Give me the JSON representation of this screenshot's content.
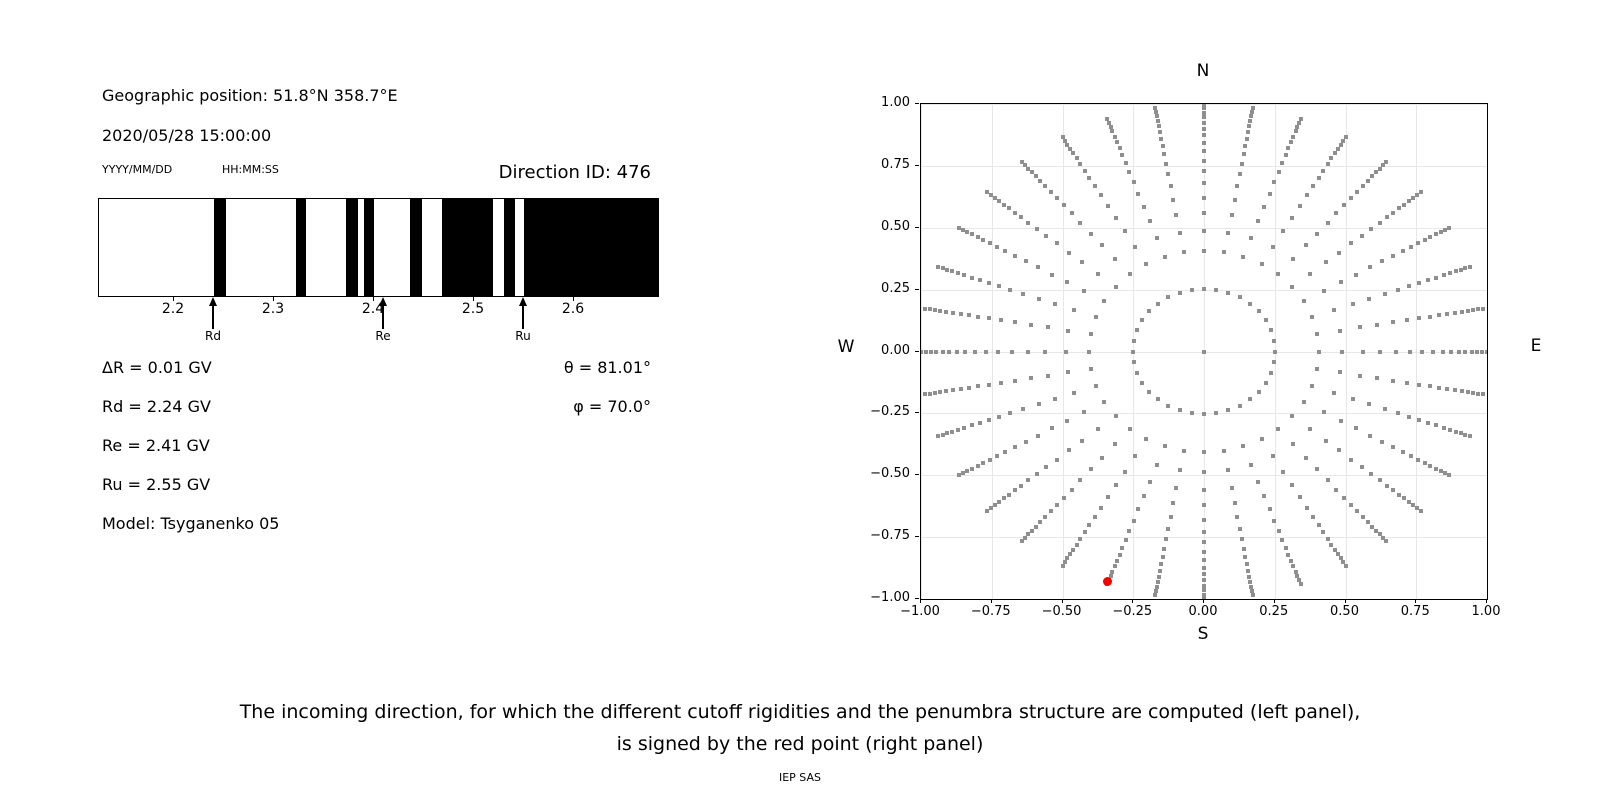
{
  "left_panel": {
    "geo_position": "Geographic position: 51.8°N 358.7°E",
    "datetime": "2020/05/28 15:00:00",
    "date_format_label": "YYYY/MM/DD",
    "time_format_label": "HH:MM:SS",
    "direction_id": "Direction ID: 476",
    "params": {
      "delta_r": "ΔR = 0.01 GV",
      "rd": "Rd = 2.24 GV",
      "re": "Re = 2.41 GV",
      "ru": "Ru = 2.55 GV",
      "theta": "θ = 81.01°",
      "phi": "φ = 70.0°",
      "model": "Model: Tsyganenko 05"
    }
  },
  "caption": {
    "line1": "The incoming direction, for which the different cutoff rigidities and the penumbra structure are computed (left panel),",
    "line2": "is signed by the red point (right panel)",
    "credit": "IEP SAS"
  },
  "chart_data": [
    {
      "name": "penumbra-structure",
      "type": "bar",
      "description": "cosmic-ray penumbra barcode: black = allowed rigidity intervals",
      "x_range_gv": [
        2.125,
        2.684
      ],
      "x_ticks": [
        2.2,
        2.3,
        2.4,
        2.5,
        2.6
      ],
      "x_tick_labels": [
        "2.2",
        "2.3",
        "2.4",
        "2.5",
        "2.6"
      ],
      "black_intervals_gv": [
        [
          2.24,
          2.252
        ],
        [
          2.322,
          2.332
        ],
        [
          2.372,
          2.384
        ],
        [
          2.39,
          2.4
        ],
        [
          2.436,
          2.448
        ],
        [
          2.468,
          2.519
        ],
        [
          2.53,
          2.541
        ],
        [
          2.55,
          2.684
        ]
      ],
      "markers": [
        {
          "label": "Rd",
          "value_gv": 2.24
        },
        {
          "label": "Re",
          "value_gv": 2.41
        },
        {
          "label": "Ru",
          "value_gv": 2.55
        }
      ],
      "bar_color": "#000000",
      "background": "#ffffff"
    },
    {
      "name": "incoming-direction-map",
      "type": "scatter",
      "description": "sky map of computed incoming directions; red point = selected direction",
      "xlim": [
        -1,
        1
      ],
      "ylim": [
        -1,
        1
      ],
      "grid": true,
      "tick_values": [
        -1.0,
        -0.75,
        -0.5,
        -0.25,
        0.0,
        0.25,
        0.5,
        0.75,
        1.0
      ],
      "tick_labels": [
        "−1.00",
        "−0.75",
        "−0.50",
        "−0.25",
        "0.00",
        "0.25",
        "0.50",
        "0.75",
        "1.00"
      ],
      "cardinal_labels": {
        "top": "N",
        "bottom": "S",
        "left": "W",
        "right": "E"
      },
      "spokes": {
        "azimuth_start_deg": 0,
        "azimuth_step_deg": 10,
        "azimuth_count": 36
      },
      "spoke_radii": [
        0.252,
        0.407,
        0.488,
        0.561,
        0.622,
        0.679,
        0.728,
        0.771,
        0.81,
        0.843,
        0.873,
        0.901,
        0.924,
        0.946,
        0.965,
        0.982,
        1.0
      ],
      "center_point": [
        0,
        0
      ],
      "dot_color": "#8f8f8f",
      "red_point": {
        "x": -0.34,
        "y": -0.93,
        "color": "#f40000"
      }
    }
  ]
}
